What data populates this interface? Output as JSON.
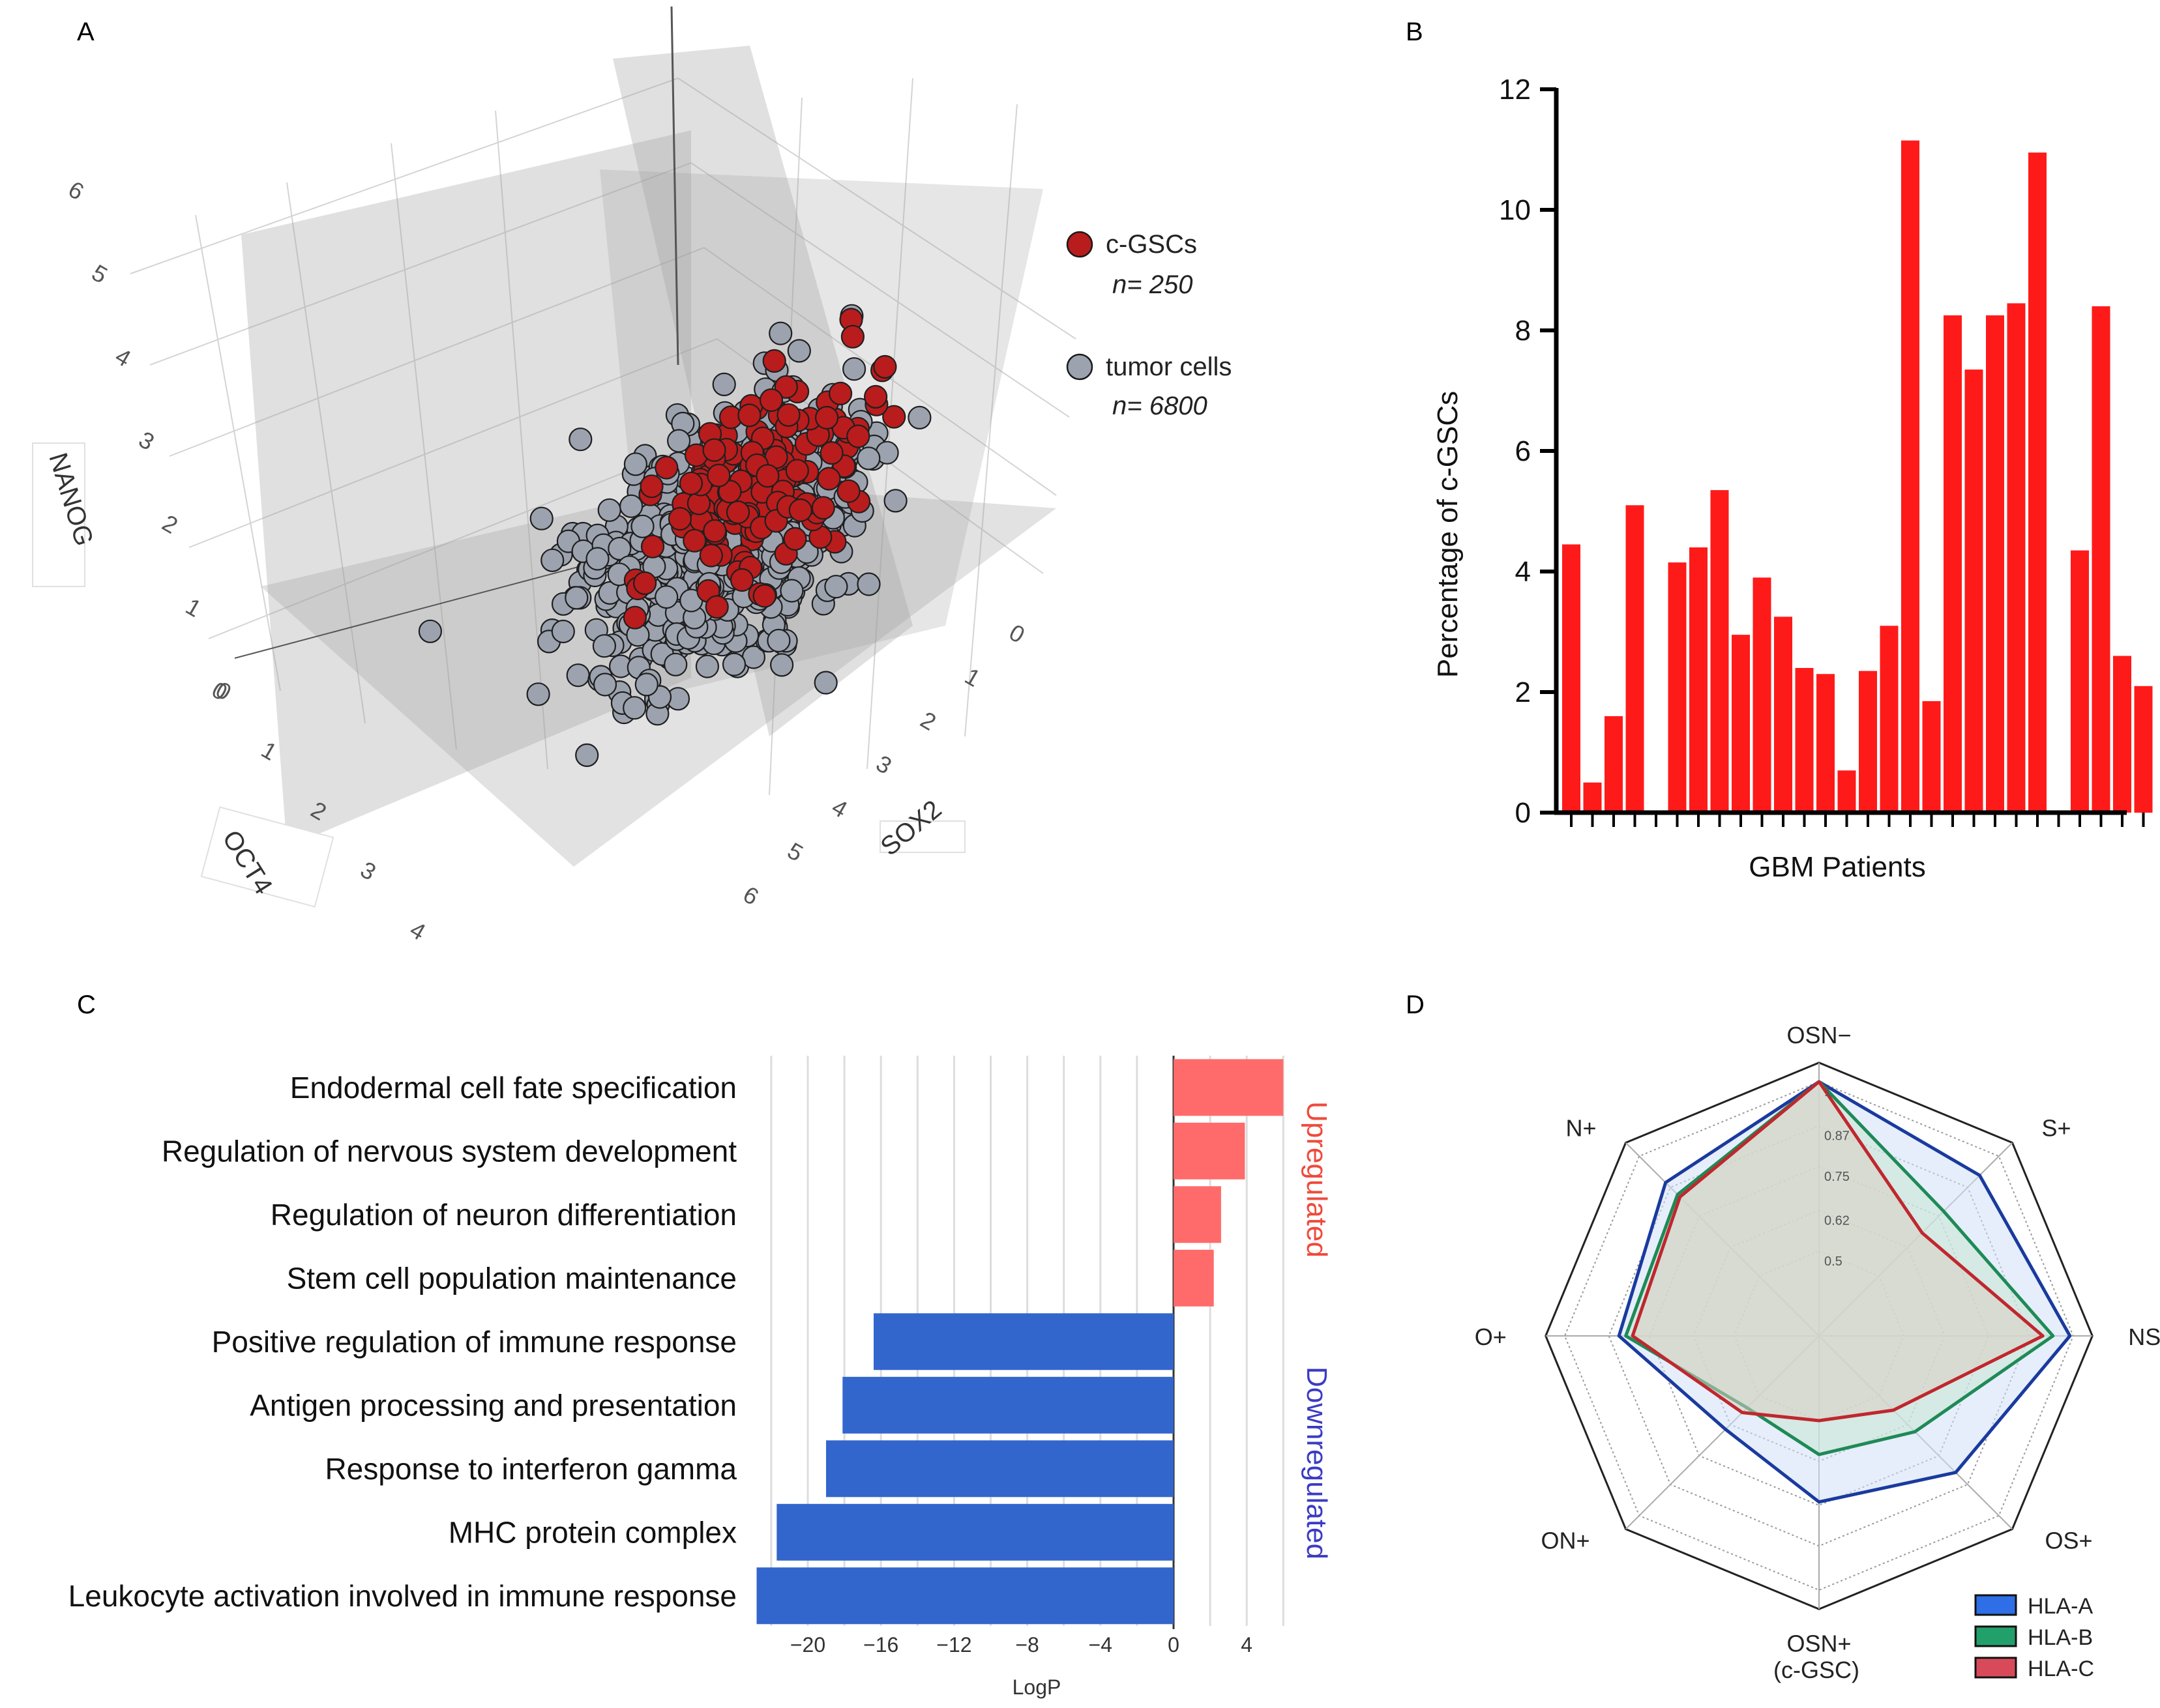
{
  "panels": {
    "a": {
      "label": "A"
    },
    "b": {
      "label": "B"
    },
    "c": {
      "label": "C"
    },
    "d": {
      "label": "D"
    }
  },
  "chart_data": [
    {
      "panel": "A",
      "type": "scatter",
      "subtype": "3d-scatter",
      "axes": {
        "x": {
          "label": "SOX2",
          "ticks": [
            "0",
            "1",
            "2",
            "3",
            "4",
            "5",
            "6"
          ]
        },
        "y": {
          "label": "OCT4",
          "ticks": [
            "0",
            "1",
            "2",
            "3",
            "4"
          ]
        },
        "z": {
          "label": "NANOG",
          "ticks": [
            "0",
            "1",
            "2",
            "3",
            "4",
            "5",
            "6"
          ]
        }
      },
      "legend": [
        {
          "name": "c-GSCs",
          "n_label": "n= 250",
          "color": "#b91c1c"
        },
        {
          "name": "tumor cells",
          "n_label": "n= 6800",
          "color": "#9ca3af"
        }
      ],
      "series": [
        {
          "name": "c-GSCs",
          "n": 250,
          "sox2_range": [
            0,
            6
          ],
          "oct4_range": [
            0,
            4
          ],
          "nanog_range": [
            0,
            6
          ]
        },
        {
          "name": "tumor cells",
          "n": 6800,
          "sox2_range": [
            0,
            6
          ],
          "oct4_range": [
            0,
            4
          ],
          "nanog_range": [
            0,
            6
          ]
        }
      ]
    },
    {
      "panel": "B",
      "type": "bar",
      "xlabel": "GBM Patients",
      "ylabel": "Percentage of c-GSCs",
      "ylim": [
        0,
        12
      ],
      "yticks": [
        "0",
        "2",
        "4",
        "6",
        "8",
        "10",
        "12"
      ],
      "color": "#ff1a1a",
      "values": [
        4.45,
        0.5,
        1.6,
        5.1,
        null,
        4.15,
        4.4,
        5.35,
        2.95,
        3.9,
        3.25,
        2.4,
        2.3,
        0.7,
        2.35,
        3.1,
        11.15,
        1.85,
        8.25,
        7.35,
        8.25,
        8.45,
        10.95,
        null,
        4.35,
        8.4,
        2.6,
        2.1
      ]
    },
    {
      "panel": "C",
      "type": "bar",
      "orientation": "horizontal",
      "xlabel": "LogP",
      "xlim": [
        -23,
        6
      ],
      "xticks": [
        "-20",
        "-16",
        "-12",
        "-8",
        "-4",
        "0",
        "4"
      ],
      "categories": [
        "Endodermal cell fate specification",
        "Regulation of nervous system development",
        "Regulation of neuron differentiation",
        "Stem cell population maintenance",
        "Positive regulation of immune response",
        "Antigen processing and presentation",
        "Response to interferon gamma",
        "MHC protein complex",
        "Leukocyte activation involved in immune response"
      ],
      "values": [
        6.0,
        3.9,
        2.6,
        2.2,
        -16.4,
        -18.1,
        -19.0,
        -21.7,
        -22.8
      ],
      "groups": [
        {
          "name": "Upregulated",
          "color": "#ff6b6b",
          "text_color": "#ef4a3c"
        },
        {
          "name": "Downregulated",
          "color": "#3366cc",
          "text_color": "#3b3bc4"
        }
      ]
    },
    {
      "panel": "D",
      "type": "radar",
      "axes": [
        "OSN−",
        "S+",
        "NS+",
        "OS+",
        "OSN+",
        "ON+",
        "O+",
        "N+"
      ],
      "axis_sublabels": {
        "OSN+": "(c-GSC)"
      },
      "rlim": [
        0.25,
        1
      ],
      "rings": [
        "1",
        "0.87",
        "0.75",
        "0.62",
        "0.5"
      ],
      "series": [
        {
          "name": "HLA-A",
          "color": "#1a3a9e",
          "fill": "#cfe0f5",
          "values": [
            1.0,
            0.92,
            0.99,
            0.82,
            0.74,
            0.64,
            0.84,
            0.89
          ]
        },
        {
          "name": "HLA-B",
          "color": "#1e8a56",
          "fill": "#c9e6d4",
          "values": [
            1.0,
            0.77,
            0.94,
            0.65,
            0.6,
            0.55,
            0.82,
            0.84
          ]
        },
        {
          "name": "HLA-C",
          "color": "#c0272d",
          "fill": "#d9cfc2",
          "values": [
            1.0,
            0.68,
            0.91,
            0.56,
            0.5,
            0.57,
            0.8,
            0.83
          ]
        }
      ]
    }
  ]
}
